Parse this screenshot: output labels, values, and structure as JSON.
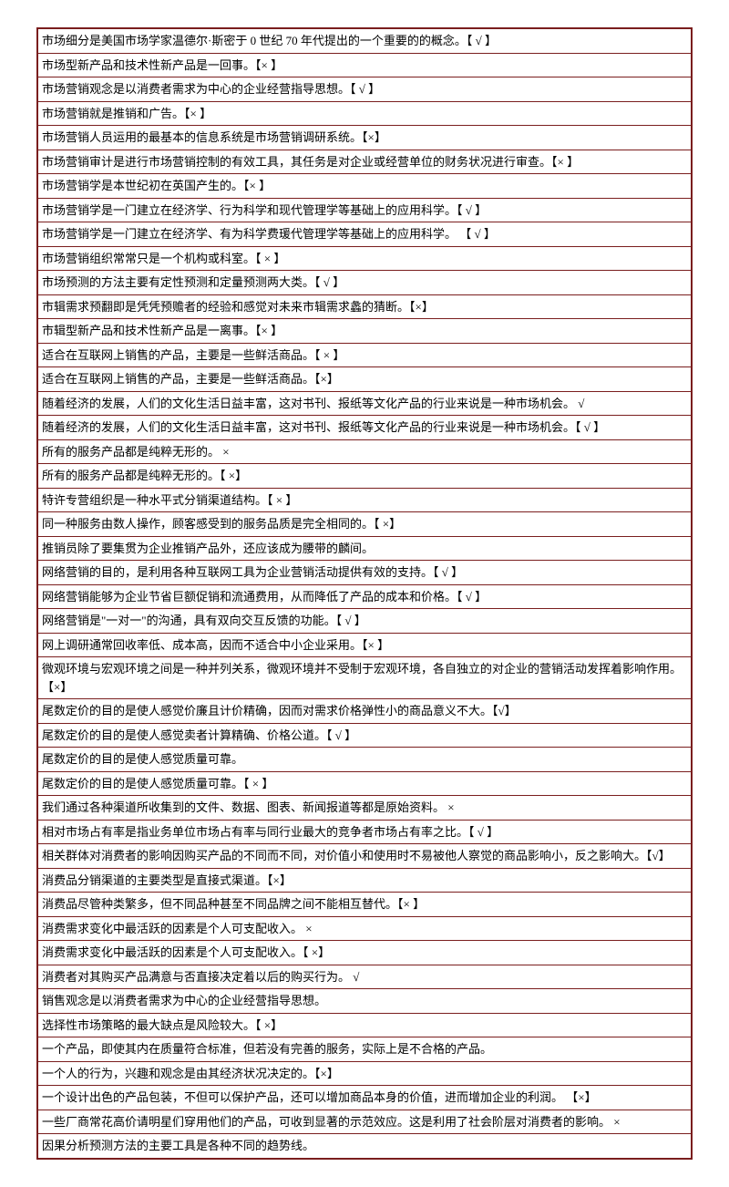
{
  "rows": [
    "市场细分是美国市场学家温德尔·斯密于 0 世纪 70 年代提出的一个重要的的概念。【 √ 】",
    "市场型新产品和技术性新产品是一回事。【×     】",
    "市场营销观念是以消费者需求为中心的企业经营指导思想。【 √       】",
    "市场营销就是推销和广告。【×   】",
    "市场营销人员运用的最基本的信息系统是市场营销调研系统。【×】",
    "市场营销审计是进行市场营销控制的有效工具，其任务是对企业或经营单位的财务状况进行审查。【×     】",
    "市场营销学是本世纪初在英国产生的。【×     】",
    "市场营销学是一门建立在经济学、行为科学和现代管理学等基础上的应用科学。【 √       】",
    "市场营销学是一门建立在经济学、有为科学费瑗代管理学等基础上的应用科学。 【 √     】",
    "市场营销组织常常只是一个机构或科室。【    ×   】",
    "市场预测的方法主要有定性预测和定量预测两大类。【    √   】",
    "市辑需求预翻即是凭凭预赡者的经验和感觉对未来市辑需求蠡的猜断。【×】",
    "市辑型新产品和技术性新产品是一离事。【×  】",
    "适合在互联网上销售的产品，主要是一些鲜活商品。【   ×  】",
    "适合在互联网上销售的产品，主要是一些鲜活商品。【×】",
    "随着经济的发展，人们的文化生活日益丰富，这对书刊、报纸等文化产品的行业来说是一种市场机会。   √",
    "随着经济的发展，人们的文化生活日益丰富，这对书刊、报纸等文化产品的行业来说是一种市场机会。【 √   】",
    "所有的服务产品都是纯粹无形的。  ×",
    "所有的服务产品都是纯粹无形的。【    ×】",
    "特许专营组织是一种水平式分销渠道结构。【   ×  】",
    "同一种服务由数人操作，顾客感受到的服务品质是完全相同的。【   ×】",
    "推销员除了要集贯为企业推销产品外，还应该成为腰带的麟间。",
    "网络营销的目的，是利用各种互联网工具为企业营销活动提供有效的支持。【    √   】",
    "网络营销能够为企业节省巨额促销和流通费用，从而降低了产品的成本和价格。【 √     】",
    "网络营销是\"一对一\"的沟通，具有双向交互反馈的功能。【   √  】",
    "网上调研通常回收率低、成本高，因而不适合中小企业采用。【×     】",
    "微观环境与宏观环境之间是一种并列关系，微观环境并不受制于宏观环境，各自独立的对企业的营销活动发挥着影响作用。【×】",
    "尾数定价的目的是使人感觉价廉且计价精确，因而对需求价格弹性小的商品意义不大。【√】",
    "尾数定价的目的是使人感觉卖者计算精确、价格公道。【 √ 】",
    "尾数定价的目的是使人感觉质量可靠。",
    "尾数定价的目的是使人感觉质量可靠。【   ×  】",
    "我们通过各种渠道所收集到的文件、数据、图表、新闻报道等都是原始资料。   ×",
    "相对市场占有率是指业务单位市场占有率与同行业最大的竞争者市场占有率之比。【 √ 】",
    "相关群体对消费者的影响因购买产品的不同而不同，对价值小和使用时不易被他人察觉的商品影响小，反之影响大。【√】",
    "消费品分销渠道的主要类型是直接式渠道。【×】",
    "消费品尽管种类繁多，但不同品种甚至不同品牌之间不能相互替代。【×   】",
    "消费需求变化中最活跃的因素是个人可支配收入。   ×",
    "消费需求变化中最活跃的因素是个人可支配收入。【    ×】",
    "消费者对其购买产品满意与否直接决定着以后的购买行为。   √",
    "销售观念是以消费者需求为中心的企业经营指导思想。",
    "选择性市场策略的最大缺点是风险较大。【    ×】",
    "一个产品，即使其内在质量符合标准，但若没有完善的服务，实际上是不合格的产品。",
    "一个人的行为，兴趣和观念是由其经济状况决定的。【×】",
    "一个设计出色的产品包装，不但可以保护产品，还可以增加商品本身的价值，进而增加企业的利润。    【×】",
    "一些厂商常花高价请明星们穿用他们的产品，可收到显著的示范效应。这是利用了社会阶层对消费者的影响。   ×",
    "因果分析预测方法的主要工具是各种不同的趋势线。"
  ],
  "styling": {
    "border_color": "#7a1e1e",
    "text_color": "#000000",
    "background_color": "#ffffff",
    "font_size": 13,
    "cell_padding": 3
  }
}
